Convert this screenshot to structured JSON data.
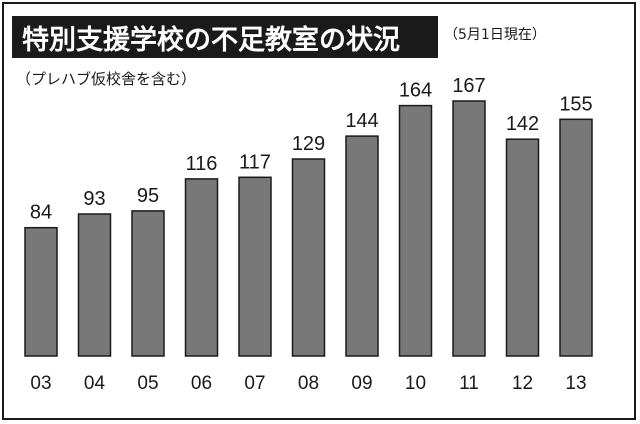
{
  "header": {
    "title": "特別支援学校の不足教室の状況",
    "date_note": "（5月1日現在）",
    "subtitle": "（プレハブ仮校舎を含む）"
  },
  "colors": {
    "bar": "#787878",
    "bar_outline": "#1a1a1a",
    "title_bg": "#1a1a1a",
    "title_fg": "#ffffff"
  },
  "chart_data": {
    "type": "bar",
    "title": "特別支援学校の不足教室の状況",
    "subtitle": "（プレハブ仮校舎を含む）",
    "annotation": "（5月1日現在）",
    "categories": [
      "03",
      "04",
      "05",
      "06",
      "07",
      "08",
      "09",
      "10",
      "11",
      "12",
      "13"
    ],
    "values": [
      84,
      93,
      95,
      116,
      117,
      129,
      144,
      164,
      167,
      142,
      155
    ],
    "xlabel": "",
    "ylabel": "",
    "ylim": [
      0,
      167
    ],
    "grid": false,
    "legend": "none"
  }
}
